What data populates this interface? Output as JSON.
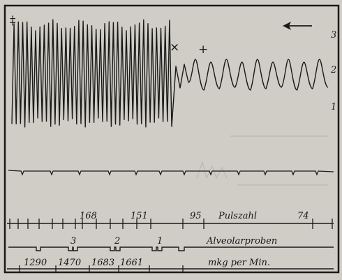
{
  "chart_data": {
    "type": "line",
    "title": "",
    "phase_marks": {
      "start": "‡",
      "stop": "×",
      "resume": "+"
    },
    "direction_arrow": "left",
    "trace_scale_labels": [
      "3",
      "2",
      "1"
    ],
    "trace_phases": [
      {
        "phase": "work",
        "cycles": 37
      },
      {
        "phase": "recovery",
        "cycles": 9
      }
    ],
    "scales": [
      {
        "label": "Pulszahl",
        "values": [
          "168",
          "151",
          "95",
          "74"
        ]
      },
      {
        "label": "Alveolarproben",
        "values": [
          "3",
          "2",
          "1"
        ]
      },
      {
        "label": "mkg per Min.",
        "values": [
          "1290",
          "1470",
          "1683",
          "1661"
        ]
      }
    ]
  },
  "colors": {
    "ink": "#1a1a1a",
    "paper": "#cfcdc6"
  }
}
